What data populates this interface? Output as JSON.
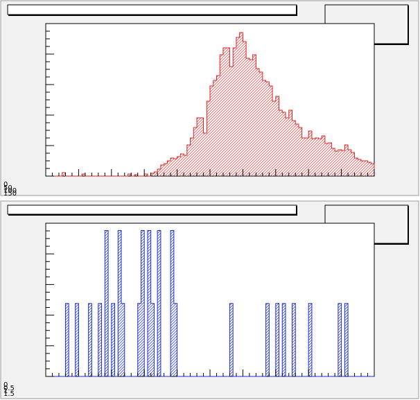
{
  "window": {
    "background": "#f2f2f2",
    "border_color": "#9a9a9a"
  },
  "colors": {
    "hist_top": "#dd2222",
    "hist_bottom": "#1c2ed8",
    "axis": "#000000",
    "frame_fill": "#ffffff"
  },
  "panels": [
    {
      "title": "",
      "stats_box_text": "",
      "corner_tick_labels": [
        "0",
        "50",
        "100",
        "150"
      ]
    },
    {
      "title": "",
      "stats_box_text": "",
      "corner_tick_labels": [
        "0",
        "0.5",
        "1",
        "1.5"
      ]
    }
  ],
  "chart_data": [
    {
      "type": "bar",
      "style": "histogram, red outline with diagonal hatch fill",
      "title": "",
      "xlabel": "",
      "ylabel": "",
      "xlim": [
        0,
        100
      ],
      "ylim": [
        0,
        220
      ],
      "grid": false,
      "legend": "stats box top-right",
      "bin_width": 1,
      "values": [
        0,
        0,
        0,
        0,
        0,
        5,
        0,
        0,
        0,
        0,
        0,
        3,
        0,
        0,
        0,
        0,
        0,
        0,
        0,
        0,
        0,
        0,
        0,
        0,
        0,
        3,
        0,
        2,
        0,
        0,
        3,
        0,
        4,
        6,
        10,
        16,
        18,
        22,
        26,
        25,
        28,
        32,
        30,
        45,
        55,
        70,
        84,
        84,
        62,
        108,
        130,
        138,
        145,
        175,
        185,
        185,
        158,
        185,
        200,
        207,
        194,
        170,
        168,
        175,
        155,
        150,
        138,
        136,
        130,
        108,
        115,
        95,
        92,
        84,
        95,
        80,
        75,
        70,
        55,
        55,
        65,
        54,
        55,
        54,
        58,
        47,
        48,
        40,
        36,
        38,
        37,
        45,
        38,
        34,
        26,
        24,
        22,
        22,
        20,
        18
      ]
    },
    {
      "type": "bar",
      "style": "histogram, blue outline with diagonal hatch fill",
      "title": "",
      "xlabel": "",
      "ylabel": "",
      "xlim": [
        0,
        100
      ],
      "ylim": [
        0,
        2.1
      ],
      "grid": false,
      "legend": "stats box top-right",
      "bin_width": 1,
      "values": [
        0,
        0,
        0,
        0,
        0,
        0,
        1,
        0,
        0,
        1,
        0,
        0,
        0,
        1,
        0,
        0,
        1,
        0,
        2,
        0,
        1,
        0,
        2,
        1,
        0,
        0,
        0,
        0,
        1,
        2,
        0,
        2,
        1,
        0,
        2,
        0,
        0,
        0,
        2,
        1,
        0,
        0,
        0,
        0,
        0,
        0,
        0,
        0,
        0,
        0,
        0,
        0,
        0,
        0,
        0,
        0,
        1,
        0,
        0,
        0,
        0,
        0,
        0,
        0,
        0,
        0,
        0,
        1,
        0,
        0,
        1,
        0,
        1,
        0,
        0,
        1,
        0,
        0,
        0,
        0,
        1,
        0,
        0,
        0,
        0,
        0,
        0,
        0,
        0,
        1,
        0,
        1,
        0,
        0,
        0,
        0,
        0,
        0,
        0,
        0
      ]
    }
  ]
}
